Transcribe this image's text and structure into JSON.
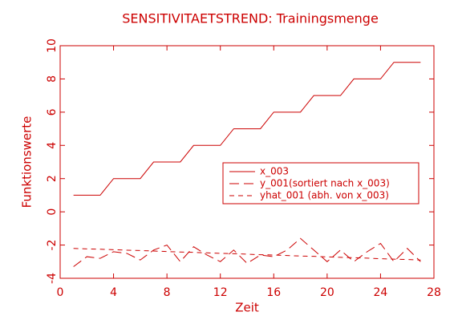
{
  "chart_data": {
    "type": "line",
    "title": "SENSITIVITAETSTREND: Trainingsmenge",
    "xlabel": "Zeit",
    "ylabel": "Funktionswerte",
    "x": [
      1,
      2,
      3,
      4,
      5,
      6,
      7,
      8,
      9,
      10,
      11,
      12,
      13,
      14,
      15,
      16,
      17,
      18,
      19,
      20,
      21,
      22,
      23,
      24,
      25,
      26,
      27
    ],
    "series": [
      {
        "name": "x_003",
        "color": "#cc0000",
        "linestyle": "solid",
        "values": [
          1,
          1,
          1,
          2,
          2,
          2,
          3,
          3,
          3,
          4,
          4,
          4,
          5,
          5,
          5,
          6,
          6,
          6,
          7,
          7,
          7,
          8,
          8,
          8,
          9,
          9,
          9
        ]
      },
      {
        "name": "y_001(sortiert nach x_003)",
        "color": "#cc0000",
        "linestyle": "dashed",
        "values": [
          -3.3,
          -2.7,
          -2.8,
          -2.4,
          -2.5,
          -2.9,
          -2.3,
          -2.0,
          -3.0,
          -2.1,
          -2.6,
          -3.0,
          -2.3,
          -3.1,
          -2.6,
          -2.7,
          -2.3,
          -1.6,
          -2.3,
          -3.0,
          -2.3,
          -3.0,
          -2.4,
          -1.9,
          -3.0,
          -2.2,
          -3.0
        ]
      },
      {
        "name": "yhat_001 (abh. von x_003)",
        "color": "#cc0000",
        "linestyle": "dotted",
        "values": [
          -2.2,
          -2.23,
          -2.25,
          -2.28,
          -2.31,
          -2.33,
          -2.36,
          -2.39,
          -2.42,
          -2.44,
          -2.47,
          -2.5,
          -2.52,
          -2.55,
          -2.58,
          -2.6,
          -2.63,
          -2.66,
          -2.68,
          -2.71,
          -2.74,
          -2.76,
          -2.79,
          -2.82,
          -2.85,
          -2.87,
          -2.9
        ]
      }
    ],
    "xlim": [
      0,
      28
    ],
    "xticks": [
      0,
      4,
      8,
      12,
      16,
      20,
      24,
      28
    ],
    "ylim": [
      -4,
      10
    ],
    "yticks": [
      -4,
      -2,
      0,
      2,
      4,
      6,
      8,
      10
    ],
    "grid": false,
    "legend": "right"
  }
}
